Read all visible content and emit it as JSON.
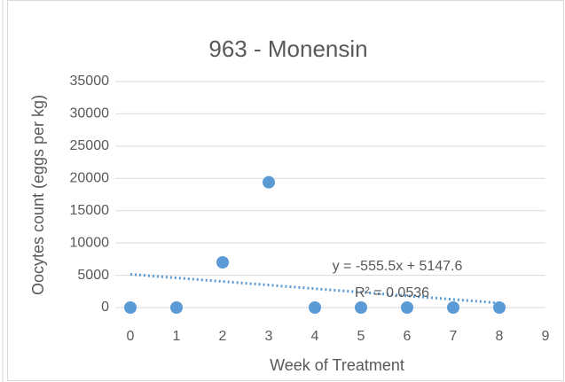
{
  "chart_data": {
    "type": "scatter",
    "title": "963 - Monensin",
    "x_label": "Week of Treatment",
    "y_label": "Oocytes count (eggs per kg)",
    "x": [
      0,
      1,
      2,
      3,
      4,
      5,
      6,
      7,
      8
    ],
    "values": [
      0,
      0,
      7000,
      19400,
      0,
      0,
      0,
      0,
      0
    ],
    "color": "#5b9bd5",
    "xlim": [
      0,
      9
    ],
    "xticks": [
      0,
      1,
      2,
      3,
      4,
      5,
      6,
      7,
      8,
      9
    ],
    "ylim": [
      0,
      35000
    ],
    "yticks": [
      0,
      5000,
      10000,
      15000,
      20000,
      25000,
      30000,
      35000
    ],
    "grid": true,
    "trendline": {
      "slope": -555.5,
      "intercept": 5147.6,
      "equation": "y = -555.5x + 5147.6",
      "r2_label": "R² = 0.0536"
    }
  }
}
